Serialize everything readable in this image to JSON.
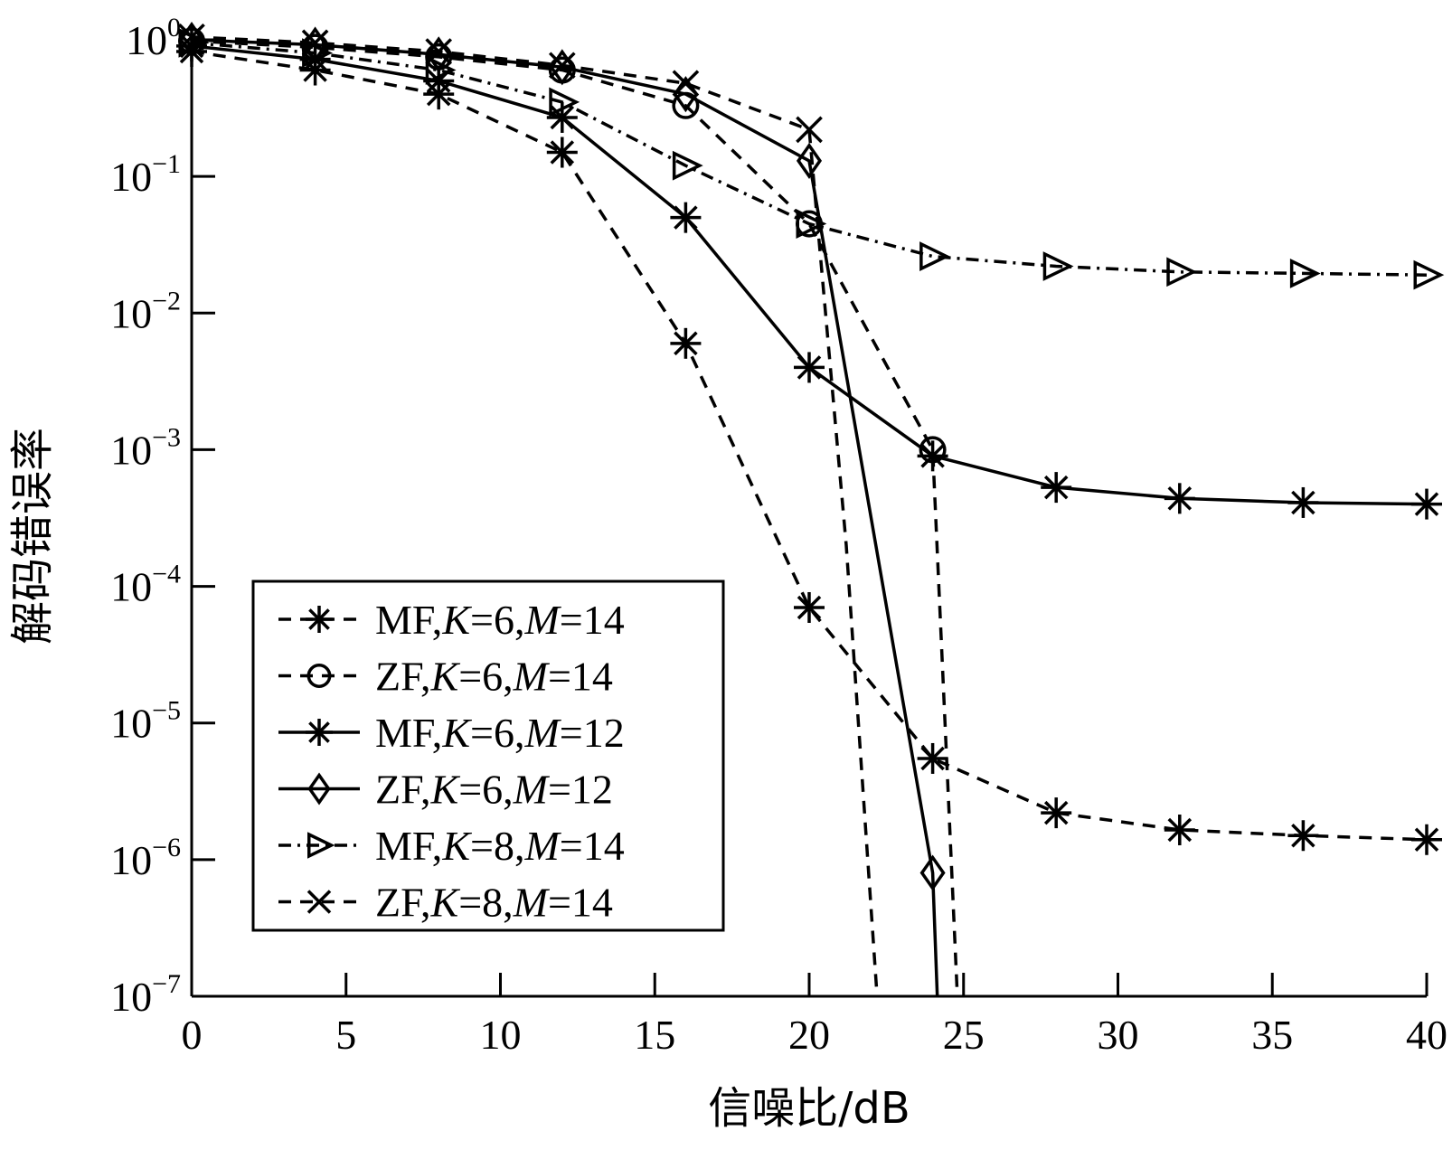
{
  "chart_data": {
    "type": "line",
    "xlabel": "信噪比/dB",
    "ylabel": "解码错误率",
    "xlim": [
      0,
      40
    ],
    "ylim": [
      1e-07,
      1
    ],
    "yscale": "log",
    "xticks": [
      0,
      5,
      10,
      15,
      20,
      25,
      30,
      35,
      40
    ],
    "xtick_labels": [
      "0",
      "5",
      "10",
      "15",
      "20",
      "25",
      "30",
      "35",
      "40"
    ],
    "yticks": [
      {
        "value": 1,
        "base": "10",
        "exp": "0"
      },
      {
        "value": 0.1,
        "base": "10",
        "exp": "−1"
      },
      {
        "value": 0.01,
        "base": "10",
        "exp": "−2"
      },
      {
        "value": 0.001,
        "base": "10",
        "exp": "−3"
      },
      {
        "value": 0.0001,
        "base": "10",
        "exp": "−4"
      },
      {
        "value": 1e-05,
        "base": "10",
        "exp": "−5"
      },
      {
        "value": 1e-06,
        "base": "10",
        "exp": "−6"
      },
      {
        "value": 1e-07,
        "base": "10",
        "exp": "−7"
      }
    ],
    "legend_position": "bottom-left",
    "series": [
      {
        "name": "MF,K=6,M=14",
        "legend": [
          {
            "t": "MF,"
          },
          {
            "t": "K",
            "i": true
          },
          {
            "t": "=6,"
          },
          {
            "t": "M",
            "i": true
          },
          {
            "t": "=14"
          }
        ],
        "marker": "asterisk",
        "dash": "14,10",
        "points": [
          [
            0,
            0.82
          ],
          [
            4,
            0.6
          ],
          [
            8,
            0.4
          ],
          [
            12,
            0.15
          ],
          [
            16,
            0.006
          ],
          [
            20,
            7e-05
          ],
          [
            24,
            5.5e-06
          ],
          [
            28,
            2.2e-06
          ],
          [
            32,
            1.65e-06
          ],
          [
            36,
            1.5e-06
          ],
          [
            40,
            1.4e-06
          ]
        ]
      },
      {
        "name": "ZF,K=6,M=14",
        "legend": [
          {
            "t": "ZF,"
          },
          {
            "t": "K",
            "i": true
          },
          {
            "t": "=6,"
          },
          {
            "t": "M",
            "i": true
          },
          {
            "t": "=14"
          }
        ],
        "marker": "circle",
        "dash": "14,10",
        "points": [
          [
            0,
            0.98
          ],
          [
            4,
            0.88
          ],
          [
            8,
            0.75
          ],
          [
            12,
            0.6
          ],
          [
            16,
            0.33
          ],
          [
            20,
            0.045
          ],
          [
            24,
            0.001
          ],
          [
            24.8,
            1e-07
          ]
        ],
        "marker_count": 7
      },
      {
        "name": "MF,K=6,M=12",
        "legend": [
          {
            "t": "MF,"
          },
          {
            "t": "K",
            "i": true
          },
          {
            "t": "=6,"
          },
          {
            "t": "M",
            "i": true
          },
          {
            "t": "=12"
          }
        ],
        "marker": "asterisk",
        "dash": "",
        "points": [
          [
            0,
            0.9
          ],
          [
            4,
            0.72
          ],
          [
            8,
            0.5
          ],
          [
            12,
            0.27
          ],
          [
            16,
            0.05
          ],
          [
            20,
            0.004
          ],
          [
            24,
            0.0009
          ],
          [
            28,
            0.00053
          ],
          [
            32,
            0.00044
          ],
          [
            36,
            0.00041
          ],
          [
            40,
            0.0004
          ]
        ]
      },
      {
        "name": "ZF,K=6,M=12",
        "legend": [
          {
            "t": "ZF,"
          },
          {
            "t": "K",
            "i": true
          },
          {
            "t": "=6,"
          },
          {
            "t": "M",
            "i": true
          },
          {
            "t": "=12"
          }
        ],
        "marker": "diamond",
        "dash": "",
        "points": [
          [
            0,
            1.0
          ],
          [
            4,
            0.92
          ],
          [
            8,
            0.78
          ],
          [
            12,
            0.63
          ],
          [
            16,
            0.4
          ],
          [
            20,
            0.13
          ],
          [
            24,
            8e-07
          ],
          [
            24.15,
            1e-07
          ]
        ],
        "marker_count": 7
      },
      {
        "name": "MF,K=8,M=14",
        "legend": [
          {
            "t": "MF,"
          },
          {
            "t": "K",
            "i": true
          },
          {
            "t": "=8,"
          },
          {
            "t": "M",
            "i": true
          },
          {
            "t": "=14"
          }
        ],
        "marker": "triangle-right",
        "dash": "14,7,3,7",
        "points": [
          [
            0,
            0.95
          ],
          [
            4,
            0.8
          ],
          [
            8,
            0.6
          ],
          [
            12,
            0.35
          ],
          [
            16,
            0.12
          ],
          [
            20,
            0.045
          ],
          [
            24,
            0.026
          ],
          [
            28,
            0.022
          ],
          [
            32,
            0.02
          ],
          [
            36,
            0.0195
          ],
          [
            40,
            0.019
          ]
        ]
      },
      {
        "name": "ZF,K=8,M=14",
        "legend": [
          {
            "t": "ZF,"
          },
          {
            "t": "K",
            "i": true
          },
          {
            "t": "=8,"
          },
          {
            "t": "M",
            "i": true
          },
          {
            "t": "=14"
          }
        ],
        "marker": "cross",
        "dash": "14,10",
        "points": [
          [
            0,
            1.05
          ],
          [
            4,
            0.95
          ],
          [
            8,
            0.82
          ],
          [
            12,
            0.65
          ],
          [
            16,
            0.48
          ],
          [
            20,
            0.22
          ],
          [
            21.2,
            0.0002
          ],
          [
            22.2,
            1e-07
          ]
        ],
        "marker_count": 6
      }
    ]
  }
}
